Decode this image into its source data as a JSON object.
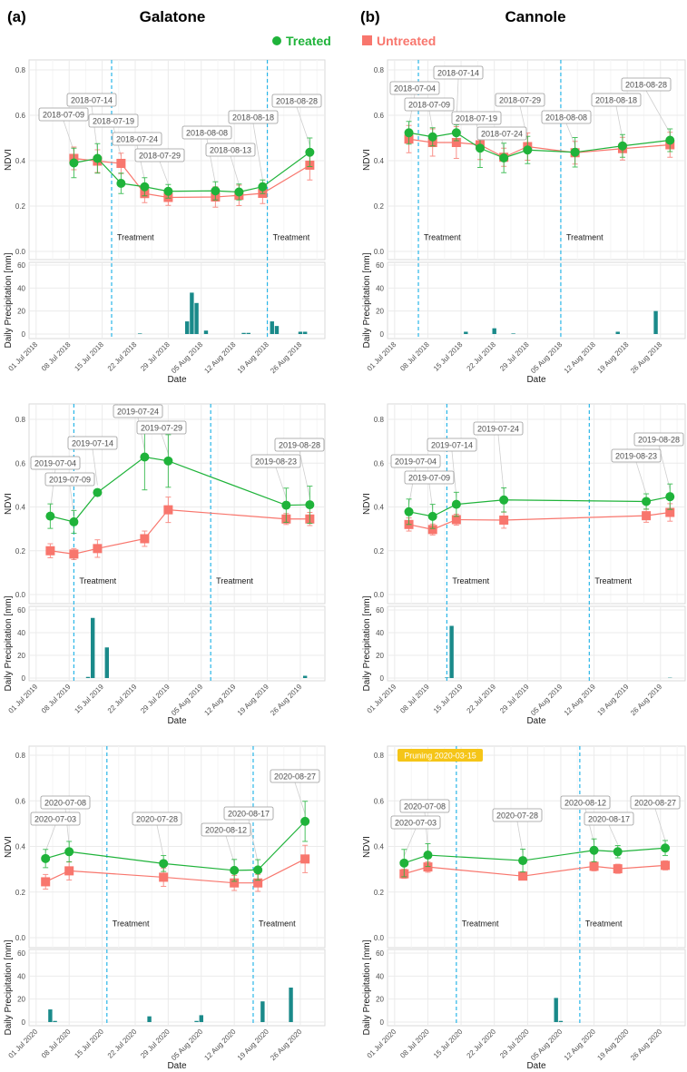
{
  "header": {
    "a_label": "(a)",
    "a_site": "Galatone",
    "b_label": "(b)",
    "b_site": "Cannole"
  },
  "legend": {
    "treated": "Treated",
    "untreated": "Untreated"
  },
  "colors": {
    "treated": "#1fb33a",
    "untreated": "#f8766d",
    "precip": "#1a8a8a",
    "treatment_line": "#29b6e8",
    "pruning": "#f5c518"
  },
  "chart_data": [
    {
      "site": "Galatone",
      "year": 2018,
      "type": "line",
      "ylabel": "NDVI",
      "precip_ylabel": "Daily Precipitation [mm]",
      "xlabel": "Date",
      "yticks": [
        "0.0",
        "0.2",
        "0.4",
        "0.6",
        "0.8"
      ],
      "precip_yticks": [
        "0",
        "20",
        "40",
        "60"
      ],
      "xticks": [
        "01 Jul 2018",
        "08 Jul 2018",
        "15 Jul 2018",
        "22 Jul 2018",
        "29 Jul 2018",
        "05 Aug 2018",
        "12 Aug 2018",
        "19 Aug 2018",
        "26 Aug 2018"
      ],
      "dates": [
        "2018-07-09",
        "2018-07-14",
        "2018-07-19",
        "2018-07-24",
        "2018-07-29",
        "2018-08-08",
        "2018-08-13",
        "2018-08-18",
        "2018-08-28"
      ],
      "treated": {
        "values": [
          0.39,
          0.41,
          0.3,
          0.285,
          0.265,
          0.267,
          0.262,
          0.285,
          0.437
        ],
        "err": [
          0.065,
          0.065,
          0.045,
          0.04,
          0.03,
          0.04,
          0.035,
          0.03,
          0.063
        ]
      },
      "untreated": {
        "values": [
          0.41,
          0.398,
          0.388,
          0.255,
          0.238,
          0.24,
          0.247,
          0.256,
          0.38
        ],
        "err": [
          0.05,
          0.05,
          0.045,
          0.04,
          0.035,
          0.045,
          0.045,
          0.045,
          0.065
        ]
      },
      "treatment_label": "Treatment",
      "treatment_dates": [
        "2018-07-17",
        "2018-08-19"
      ],
      "precipitation": [
        [
          "2018-07-23",
          0.5
        ],
        [
          "2018-08-02",
          11
        ],
        [
          "2018-08-03",
          36
        ],
        [
          "2018-08-04",
          27
        ],
        [
          "2018-08-06",
          3
        ],
        [
          "2018-08-14",
          1
        ],
        [
          "2018-08-15",
          1
        ],
        [
          "2018-08-20",
          11
        ],
        [
          "2018-08-21",
          7
        ],
        [
          "2018-08-26",
          2
        ],
        [
          "2018-08-27",
          2
        ]
      ]
    },
    {
      "site": "Cannole",
      "year": 2018,
      "type": "line",
      "ylabel": "NDVI",
      "precip_ylabel": "Daily Precipitation [mm]",
      "xlabel": "Date",
      "yticks": [
        "0.0",
        "0.2",
        "0.4",
        "0.6",
        "0.8"
      ],
      "precip_yticks": [
        "0",
        "20",
        "40",
        "60"
      ],
      "xticks": [
        "01 Jul 2018",
        "08 Jul 2018",
        "15 Jul 2018",
        "22 Jul 2018",
        "29 Jul 2018",
        "05 Aug 2018",
        "12 Aug 2018",
        "19 Aug 2018",
        "26 Aug 2018"
      ],
      "dates": [
        "2018-07-04",
        "2018-07-09",
        "2018-07-14",
        "2018-07-19",
        "2018-07-24",
        "2018-07-29",
        "2018-08-08",
        "2018-08-18",
        "2018-08-28"
      ],
      "treated": {
        "values": [
          0.523,
          0.505,
          0.523,
          0.455,
          0.412,
          0.447,
          0.437,
          0.465,
          0.49
        ],
        "err": [
          0.05,
          0.04,
          0.035,
          0.085,
          0.065,
          0.06,
          0.065,
          0.05,
          0.05
        ]
      },
      "untreated": {
        "values": [
          0.495,
          0.48,
          0.48,
          0.47,
          0.415,
          0.462,
          0.435,
          0.453,
          0.47
        ],
        "err": [
          0.06,
          0.06,
          0.07,
          0.065,
          0.04,
          0.06,
          0.05,
          0.05,
          0.055
        ]
      },
      "treatment_label": "Treatment",
      "treatment_dates": [
        "2018-07-06",
        "2018-08-05"
      ],
      "precipitation": [
        [
          "2018-07-16",
          2
        ],
        [
          "2018-07-22",
          5
        ],
        [
          "2018-07-26",
          0.5
        ],
        [
          "2018-08-17",
          2
        ],
        [
          "2018-08-25",
          20
        ]
      ]
    },
    {
      "site": "Galatone",
      "year": 2019,
      "type": "line",
      "ylabel": "NDVI",
      "precip_ylabel": "Daily Precipitation [mm]",
      "xlabel": "Date",
      "yticks": [
        "0.0",
        "0.2",
        "0.4",
        "0.6",
        "0.8"
      ],
      "precip_yticks": [
        "0",
        "20",
        "40",
        "60"
      ],
      "xticks": [
        "01 Jul 2019",
        "08 Jul 2019",
        "15 Jul 2019",
        "22 Jul 2019",
        "29 Jul 2019",
        "05 Aug 2019",
        "12 Aug 2019",
        "19 Aug 2019",
        "26 Aug 2019"
      ],
      "dates": [
        "2019-07-04",
        "2019-07-09",
        "2019-07-14",
        "2019-07-24",
        "2019-07-29",
        "2019-08-23",
        "2019-08-28"
      ],
      "treated": {
        "values": [
          0.358,
          0.332,
          0.466,
          0.628,
          0.61,
          0.408,
          0.41
        ],
        "err": [
          0.056,
          0.052,
          0.01,
          0.15,
          0.12,
          0.078,
          0.085
        ]
      },
      "untreated": {
        "values": [
          0.2,
          0.185,
          0.21,
          0.255,
          0.387,
          0.345,
          0.345
        ],
        "err": [
          0.032,
          0.025,
          0.04,
          0.035,
          0.058,
          0.025,
          0.03
        ]
      },
      "treatment_label": "Treatment",
      "treatment_dates": [
        "2019-07-09",
        "2019-08-07"
      ],
      "precipitation": [
        [
          "2019-07-12",
          1
        ],
        [
          "2019-07-13",
          53
        ],
        [
          "2019-07-16",
          27
        ],
        [
          "2019-08-27",
          2
        ]
      ]
    },
    {
      "site": "Cannole",
      "year": 2019,
      "type": "line",
      "ylabel": "NDVI",
      "precip_ylabel": "Daily Precipitation [mm]",
      "xlabel": "Date",
      "yticks": [
        "0.0",
        "0.2",
        "0.4",
        "0.6",
        "0.8"
      ],
      "precip_yticks": [
        "0",
        "20",
        "40",
        "60"
      ],
      "xticks": [
        "01 Jul 2019",
        "08 Jul 2019",
        "15 Jul 2019",
        "22 Jul 2019",
        "29 Jul 2019",
        "05 Aug 2019",
        "12 Aug 2019",
        "19 Aug 2019",
        "26 Aug 2019"
      ],
      "dates": [
        "2019-07-04",
        "2019-07-09",
        "2019-07-14",
        "2019-07-24",
        "2019-08-23",
        "2019-08-28"
      ],
      "treated": {
        "values": [
          0.378,
          0.357,
          0.412,
          0.432,
          0.425,
          0.447
        ],
        "err": [
          0.058,
          0.055,
          0.055,
          0.055,
          0.035,
          0.058
        ]
      },
      "untreated": {
        "values": [
          0.32,
          0.297,
          0.342,
          0.34,
          0.36,
          0.375
        ],
        "err": [
          0.03,
          0.025,
          0.025,
          0.037,
          0.03,
          0.04
        ]
      },
      "treatment_label": "Treatment",
      "treatment_dates": [
        "2019-07-12",
        "2019-08-11"
      ],
      "precipitation": [
        [
          "2019-07-12",
          0.5
        ],
        [
          "2019-07-13",
          46
        ],
        [
          "2019-08-28",
          0.3
        ]
      ]
    },
    {
      "site": "Galatone",
      "year": 2020,
      "type": "line",
      "ylabel": "NDVI",
      "precip_ylabel": "Daily Precipitation [mm]",
      "xlabel": "Date",
      "yticks": [
        "0.0",
        "0.2",
        "0.4",
        "0.6",
        "0.8"
      ],
      "precip_yticks": [
        "0",
        "20",
        "40",
        "60"
      ],
      "xticks": [
        "01 Jul 2020",
        "08 Jul 2020",
        "15 Jul 2020",
        "22 Jul 2020",
        "29 Jul 2020",
        "05 Aug 2020",
        "12 Aug 2020",
        "19 Aug 2020",
        "26 Aug 2020"
      ],
      "dates": [
        "2020-07-03",
        "2020-07-08",
        "2020-07-28",
        "2020-08-12",
        "2020-08-17",
        "2020-08-27"
      ],
      "treated": {
        "values": [
          0.347,
          0.377,
          0.325,
          0.295,
          0.297,
          0.51
        ],
        "err": [
          0.04,
          0.045,
          0.035,
          0.048,
          0.045,
          0.088
        ]
      },
      "untreated": {
        "values": [
          0.245,
          0.293,
          0.265,
          0.24,
          0.24,
          0.345
        ],
        "err": [
          0.032,
          0.04,
          0.04,
          0.033,
          0.037,
          0.06
        ]
      },
      "treatment_label": "Treatment",
      "treatment_dates": [
        "2020-07-16",
        "2020-08-16"
      ],
      "precipitation": [
        [
          "2020-07-04",
          11
        ],
        [
          "2020-07-05",
          1
        ],
        [
          "2020-07-25",
          5
        ],
        [
          "2020-08-04",
          1
        ],
        [
          "2020-08-05",
          6
        ],
        [
          "2020-08-18",
          18
        ],
        [
          "2020-08-24",
          30
        ]
      ]
    },
    {
      "site": "Cannole",
      "year": 2020,
      "type": "line",
      "ylabel": "NDVI",
      "precip_ylabel": "Daily Precipitation [mm]",
      "xlabel": "Date",
      "yticks": [
        "0.0",
        "0.2",
        "0.4",
        "0.6",
        "0.8"
      ],
      "precip_yticks": [
        "0",
        "20",
        "40",
        "60"
      ],
      "xticks": [
        "01 Jul 2020",
        "08 Jul 2020",
        "15 Jul 2020",
        "22 Jul 2020",
        "29 Jul 2020",
        "05 Aug 2020",
        "12 Aug 2020",
        "19 Aug 2020",
        "26 Aug 2020"
      ],
      "dates": [
        "2020-07-03",
        "2020-07-08",
        "2020-07-28",
        "2020-08-12",
        "2020-08-17",
        "2020-08-27"
      ],
      "treated": {
        "values": [
          0.327,
          0.362,
          0.338,
          0.383,
          0.377,
          0.393
        ],
        "err": [
          0.06,
          0.05,
          0.05,
          0.05,
          0.027,
          0.033
        ]
      },
      "untreated": {
        "values": [
          0.28,
          0.31,
          0.27,
          0.313,
          0.302,
          0.317
        ],
        "err": [
          0.02,
          0.023,
          0.015,
          0.02,
          0.02,
          0.02
        ]
      },
      "treatment_label": "Treatment",
      "treatment_dates": [
        "2020-07-14",
        "2020-08-09"
      ],
      "annotation": "Pruning 2020-03-15",
      "precipitation": [
        [
          "2020-08-04",
          21
        ],
        [
          "2020-08-05",
          1
        ]
      ]
    }
  ]
}
